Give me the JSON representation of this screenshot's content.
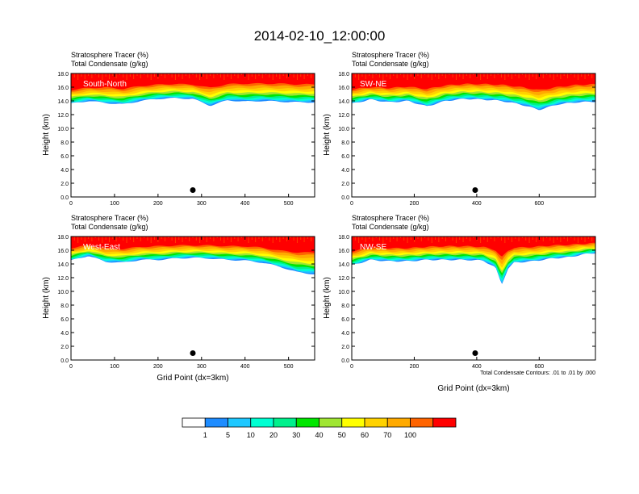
{
  "figure": {
    "title": "2014-02-10_12:00:00",
    "footnote": "Total Condensate Contours: .01 to .01 by .000"
  },
  "colorbar": {
    "colors": [
      "#ffffff",
      "#1e8cff",
      "#1ec8ff",
      "#00ffd2",
      "#00f08c",
      "#00e600",
      "#a0e632",
      "#ffff00",
      "#ffd200",
      "#ffaa00",
      "#ff6400",
      "#ff0000"
    ],
    "labels": [
      "1",
      "5",
      "10",
      "20",
      "30",
      "40",
      "50",
      "60",
      "70",
      "100"
    ]
  },
  "chart_data": [
    {
      "type": "heatmap",
      "name": "South-North",
      "title_lines": [
        "Stratosphere Tracer   (%)",
        "Total Condensate   (g/kg)"
      ],
      "ylabel": "Height (km)",
      "xlabel": "",
      "xlim": [
        0,
        560
      ],
      "ylim": [
        0,
        18
      ],
      "xticks": [
        0,
        100,
        200,
        300,
        400,
        500
      ],
      "yticks": [
        "0.0",
        "2.0",
        "4.0",
        "6.0",
        "8.0",
        "10.0",
        "12.0",
        "14.0",
        "16.0",
        "18.0"
      ],
      "tracer_band": {
        "x": [
          0,
          40,
          80,
          120,
          160,
          200,
          240,
          280,
          320,
          360,
          400,
          440,
          480,
          520,
          560
        ],
        "base": [
          13.6,
          14.0,
          13.7,
          13.5,
          14.0,
          14.3,
          14.4,
          14.3,
          13.3,
          14.1,
          13.9,
          14.0,
          13.9,
          13.8,
          13.8
        ],
        "top100": [
          15.8,
          16.1,
          16.2,
          16.0,
          16.4,
          16.6,
          16.7,
          16.6,
          16.2,
          16.7,
          16.8,
          16.8,
          16.8,
          16.7,
          16.7
        ]
      },
      "marker": {
        "x": 280,
        "y": 1.0
      }
    },
    {
      "type": "heatmap",
      "name": "SW-NE",
      "title_lines": [
        "Stratosphere Tracer   (%)",
        "Total Condensate   (g/kg)"
      ],
      "ylabel": "Height (km)",
      "xlabel": "",
      "xlim": [
        0,
        780
      ],
      "ylim": [
        0,
        18
      ],
      "xticks": [
        0,
        200,
        400,
        600
      ],
      "yticks": [
        "0.0",
        "2.0",
        "4.0",
        "6.0",
        "8.0",
        "10.0",
        "12.0",
        "14.0",
        "16.0",
        "18.0"
      ],
      "tracer_band": {
        "x": [
          0,
          60,
          120,
          180,
          240,
          300,
          360,
          420,
          480,
          540,
          600,
          660,
          720,
          780
        ],
        "base": [
          13.6,
          14.2,
          13.8,
          14.0,
          13.2,
          14.0,
          14.3,
          14.2,
          14.0,
          13.5,
          12.7,
          13.5,
          13.8,
          13.9
        ],
        "top100": [
          15.9,
          16.2,
          16.1,
          16.3,
          16.0,
          16.5,
          16.7,
          16.7,
          16.6,
          16.3,
          15.9,
          16.3,
          16.6,
          16.7
        ]
      },
      "marker": {
        "x": 395,
        "y": 1.0
      }
    },
    {
      "type": "heatmap",
      "name": "West-East",
      "title_lines": [
        "Stratosphere Tracer   (%)",
        "Total Condensate   (g/kg)"
      ],
      "ylabel": "Height (km)",
      "xlabel": "Grid Point (dx=3km)",
      "xlim": [
        0,
        560
      ],
      "ylim": [
        0,
        18
      ],
      "xticks": [
        0,
        100,
        200,
        300,
        400,
        500
      ],
      "yticks": [
        "0.0",
        "2.0",
        "4.0",
        "6.0",
        "8.0",
        "10.0",
        "12.0",
        "14.0",
        "16.0",
        "18.0"
      ],
      "tracer_band": {
        "x": [
          0,
          40,
          80,
          120,
          160,
          200,
          240,
          280,
          320,
          360,
          400,
          440,
          480,
          520,
          560
        ],
        "base": [
          14.5,
          15.2,
          14.3,
          14.2,
          14.6,
          14.6,
          14.8,
          14.9,
          14.8,
          14.6,
          14.5,
          14.2,
          13.6,
          12.8,
          12.5
        ],
        "top100": [
          16.5,
          16.9,
          16.5,
          16.4,
          16.7,
          16.8,
          16.9,
          16.9,
          16.9,
          16.8,
          16.8,
          16.6,
          16.2,
          16.0,
          16.0
        ]
      },
      "marker": {
        "x": 280,
        "y": 1.0
      }
    },
    {
      "type": "heatmap",
      "name": "NW-SE",
      "title_lines": [
        "Stratosphere Tracer   (%)",
        "Total Condensate   (g/kg)"
      ],
      "ylabel": "Height (km)",
      "xlabel": "Grid Point (dx=3km)",
      "xlim": [
        0,
        780
      ],
      "ylim": [
        0,
        18
      ],
      "xticks": [
        0,
        200,
        400,
        600
      ],
      "yticks": [
        "0.0",
        "2.0",
        "4.0",
        "6.0",
        "8.0",
        "10.0",
        "12.0",
        "14.0",
        "16.0",
        "18.0"
      ],
      "tracer_band": {
        "x": [
          0,
          60,
          120,
          180,
          240,
          300,
          360,
          420,
          460,
          480,
          500,
          520,
          580,
          640,
          700,
          740,
          780
        ],
        "base": [
          13.8,
          14.6,
          14.4,
          14.4,
          14.6,
          14.6,
          14.6,
          14.5,
          13.5,
          11.0,
          13.3,
          14.2,
          14.4,
          14.8,
          15.0,
          15.4,
          15.6
        ],
        "top100": [
          16.0,
          16.6,
          16.5,
          16.5,
          16.7,
          16.8,
          16.8,
          16.7,
          16.3,
          15.4,
          16.2,
          16.6,
          16.7,
          16.9,
          17.0,
          17.1,
          17.2
        ]
      },
      "marker": {
        "x": 395,
        "y": 1.0
      }
    }
  ]
}
